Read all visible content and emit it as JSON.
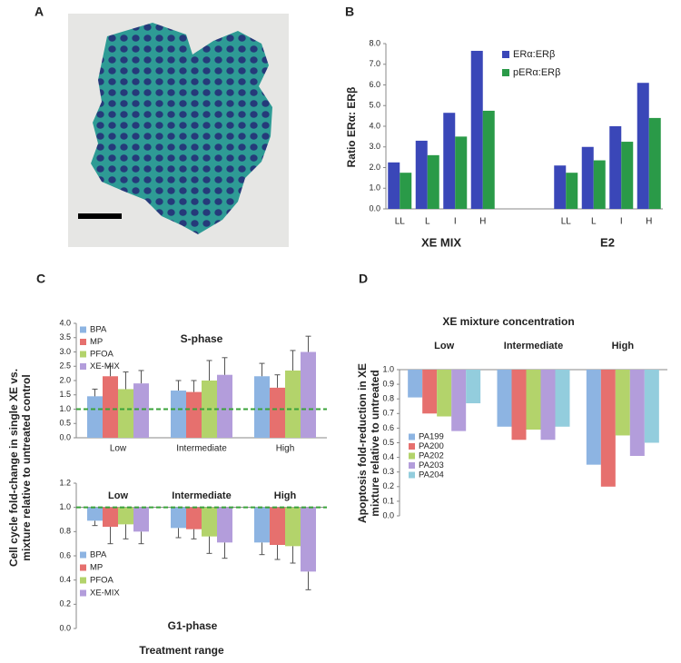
{
  "image_panel": {
    "panel": "A"
  },
  "chart_data": [
    {
      "type": "bar",
      "panel": "B",
      "ylabel": [
        "Ratio ERα: ERβ"
      ],
      "categories": [
        "LL",
        "L",
        "I",
        "H",
        null,
        null,
        "LL",
        "L",
        "I",
        "H"
      ],
      "groups": [
        "XE MIX",
        "E2"
      ],
      "series": [
        {
          "name": "ERα:ERβ",
          "color": "#3a47b8",
          "values": [
            2.25,
            3.3,
            4.65,
            7.65,
            null,
            null,
            2.1,
            3.0,
            4.0,
            6.1
          ]
        },
        {
          "name": "pERα:ERβ",
          "color": "#2a9a48",
          "values": [
            1.75,
            2.6,
            3.5,
            4.75,
            null,
            null,
            1.75,
            2.35,
            3.25,
            4.4
          ]
        }
      ],
      "ylim": [
        0,
        8
      ],
      "yticks": [
        {
          "value": 0,
          "label": "0.0"
        },
        {
          "value": 1,
          "label": "1.0"
        },
        {
          "value": 2,
          "label": "2.0"
        },
        {
          "value": 3,
          "label": "3.0"
        },
        {
          "value": 4,
          "label": "4.0"
        },
        {
          "value": 5,
          "label": "5.0"
        },
        {
          "value": 6,
          "label": "6.0"
        },
        {
          "value": 7,
          "label": "7.0"
        },
        {
          "value": 8,
          "label": "8.0"
        }
      ],
      "legend": "top-right"
    },
    {
      "type": "bar",
      "panel": "C",
      "title": "S-phase",
      "ylabel": [
        "Cell cycle fold-change in single XE vs.",
        "mixture relative to untreated control"
      ],
      "categories": [
        "Low",
        "Intermediate",
        "High"
      ],
      "series": [
        {
          "name": "BPA",
          "color": "#8db4e2",
          "values": [
            1.45,
            1.65,
            2.15
          ],
          "errors": [
            0.25,
            0.35,
            0.45
          ]
        },
        {
          "name": "MP",
          "color": "#e6706e",
          "values": [
            2.15,
            1.6,
            1.75
          ],
          "errors": [
            0.35,
            0.4,
            0.45
          ]
        },
        {
          "name": "PFOA",
          "color": "#b3d36b",
          "values": [
            1.7,
            2.0,
            2.35
          ],
          "errors": [
            0.6,
            0.7,
            0.7
          ]
        },
        {
          "name": "XE-MIX",
          "color": "#b39ddb",
          "values": [
            1.9,
            2.2,
            3.0
          ],
          "errors": [
            0.45,
            0.6,
            0.55
          ]
        }
      ],
      "ylim": [
        0,
        4
      ],
      "yticks": [
        {
          "value": 0,
          "label": "0.0"
        },
        0.5,
        {
          "value": 1,
          "label": "1.0"
        },
        1.5,
        {
          "value": 2,
          "label": "2.0"
        },
        2.5,
        {
          "value": 3,
          "label": "3.0"
        },
        3.5,
        {
          "value": 4,
          "label": "4.0"
        }
      ],
      "reference_line": 1,
      "reference_color": "#3aa33a",
      "legend": "top-left"
    },
    {
      "type": "bar",
      "title": "G1-phase",
      "xlabel": "Treatment range",
      "categories": [
        "Low",
        "Intermediate",
        "High"
      ],
      "series": [
        {
          "name": "BPA",
          "color": "#8db4e2",
          "values": [
            0.89,
            0.83,
            0.71
          ],
          "errors": [
            0.04,
            0.08,
            0.1
          ]
        },
        {
          "name": "MP",
          "color": "#e6706e",
          "values": [
            0.84,
            0.82,
            0.69
          ],
          "errors": [
            0.14,
            0.08,
            0.12
          ]
        },
        {
          "name": "PFOA",
          "color": "#b3d36b",
          "values": [
            0.86,
            0.76,
            0.68
          ],
          "errors": [
            0.12,
            0.14,
            0.14
          ]
        },
        {
          "name": "XE-MIX",
          "color": "#b39ddb",
          "values": [
            0.8,
            0.71,
            0.47
          ],
          "errors": [
            0.1,
            0.13,
            0.15
          ]
        }
      ],
      "ylim": [
        0,
        1.2
      ],
      "yticks": [
        {
          "value": 0,
          "label": "0.0"
        },
        0.2,
        0.4,
        0.6,
        0.8,
        {
          "value": 1,
          "label": "1.0"
        },
        1.2
      ],
      "baseline": 1,
      "reference_line": 1,
      "reference_color": "#3aa33a",
      "legend": "bottom-left"
    },
    {
      "type": "bar",
      "panel": "D",
      "title": "XE mixture concentration",
      "ylabel": [
        "Apoptosis fold-reduction in XE",
        "mixture relative to untreated"
      ],
      "categories": [
        "Low",
        "Intermediate",
        "High"
      ],
      "series": [
        {
          "name": "PA199",
          "color": "#8db4e2",
          "values": [
            0.81,
            0.61,
            0.35
          ]
        },
        {
          "name": "PA200",
          "color": "#e6706e",
          "values": [
            0.7,
            0.52,
            0.2
          ]
        },
        {
          "name": "PA202",
          "color": "#b3d36b",
          "values": [
            0.68,
            0.59,
            0.55
          ]
        },
        {
          "name": "PA203",
          "color": "#b39ddb",
          "values": [
            0.58,
            0.52,
            0.41
          ]
        },
        {
          "name": "PA204",
          "color": "#93cddd",
          "values": [
            0.77,
            0.61,
            0.5
          ]
        }
      ],
      "ylim": [
        0,
        1
      ],
      "yticks": [
        {
          "value": 0,
          "label": "0.0"
        },
        0.1,
        0.2,
        0.3,
        0.4,
        0.5,
        0.6,
        0.7,
        0.8,
        0.9,
        {
          "value": 1,
          "label": "1.0"
        }
      ],
      "baseline": 1,
      "legend": "bottom-left"
    }
  ]
}
